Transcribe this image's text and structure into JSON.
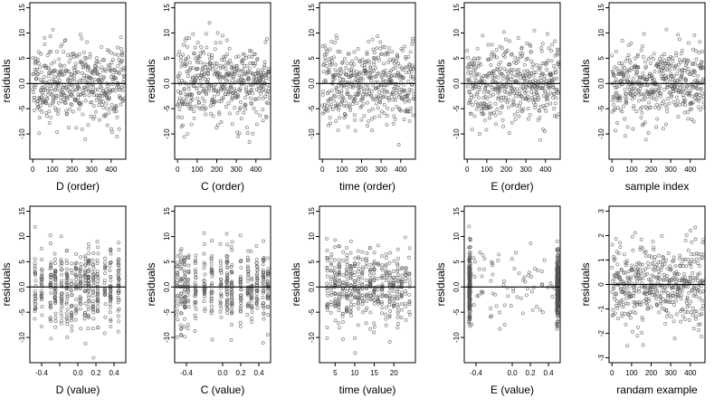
{
  "figure": {
    "ylabel": "residuals"
  },
  "colors": {
    "frame": "#000000",
    "point": "#555555",
    "background": "#ffffff"
  },
  "chart_data": [
    {
      "type": "scatter",
      "xlabel": "D (order)",
      "ylabel": "residuals",
      "xlim": [
        -15,
        475
      ],
      "ylim": [
        -15,
        16
      ],
      "x_ticks": [
        0,
        100,
        200,
        300,
        400
      ],
      "x_tick_labels": [
        "0",
        "100",
        "200",
        "300",
        "400"
      ],
      "y_ticks": [
        -10,
        -5,
        0,
        5,
        10,
        15
      ],
      "y_tick_labels": [
        "-10",
        "-5",
        "0.0",
        "5",
        "10",
        "15"
      ],
      "hline": 0,
      "points": [],
      "generator": {
        "kind": "index",
        "n": 470,
        "seed": 11,
        "sd": 4.6,
        "min": -14,
        "max": 15.5
      }
    },
    {
      "type": "scatter",
      "xlabel": "C (order)",
      "ylabel": "residuals",
      "xlim": [
        -15,
        475
      ],
      "ylim": [
        -15,
        16
      ],
      "x_ticks": [
        0,
        100,
        200,
        300,
        400
      ],
      "x_tick_labels": [
        "0",
        "100",
        "200",
        "300",
        "400"
      ],
      "y_ticks": [
        -10,
        -5,
        0,
        5,
        10,
        15
      ],
      "y_tick_labels": [
        "-10",
        "-5",
        "0.0",
        "5",
        "10",
        "15"
      ],
      "hline": 0,
      "points": [],
      "generator": {
        "kind": "index",
        "n": 470,
        "seed": 23,
        "sd": 4.6,
        "min": -14,
        "max": 15.5
      }
    },
    {
      "type": "scatter",
      "xlabel": "time (order)",
      "ylabel": "residuals",
      "xlim": [
        -15,
        475
      ],
      "ylim": [
        -15,
        16
      ],
      "x_ticks": [
        0,
        100,
        200,
        300,
        400
      ],
      "x_tick_labels": [
        "0",
        "100",
        "200",
        "300",
        "400"
      ],
      "y_ticks": [
        -10,
        -5,
        0,
        5,
        10,
        15
      ],
      "y_tick_labels": [
        "-10",
        "-5",
        "0.0",
        "5",
        "10",
        "15"
      ],
      "hline": 0,
      "points": [],
      "generator": {
        "kind": "index",
        "n": 470,
        "seed": 37,
        "sd": 4.6,
        "min": -14,
        "max": 15.5
      }
    },
    {
      "type": "scatter",
      "xlabel": "E (order)",
      "ylabel": "residuals",
      "xlim": [
        -15,
        475
      ],
      "ylim": [
        -15,
        16
      ],
      "x_ticks": [
        0,
        100,
        200,
        300,
        400
      ],
      "x_tick_labels": [
        "0",
        "100",
        "200",
        "300",
        "400"
      ],
      "y_ticks": [
        -10,
        -5,
        0,
        5,
        10,
        15
      ],
      "y_tick_labels": [
        "-10",
        "-5",
        "0.0",
        "5",
        "10",
        "15"
      ],
      "hline": 0,
      "points": [],
      "generator": {
        "kind": "index",
        "n": 470,
        "seed": 41,
        "sd": 4.6,
        "min": -14,
        "max": 15.5
      }
    },
    {
      "type": "scatter",
      "xlabel": "sample index",
      "ylabel": "residuals",
      "xlim": [
        -15,
        475
      ],
      "ylim": [
        -15,
        16
      ],
      "x_ticks": [
        0,
        100,
        200,
        300,
        400
      ],
      "x_tick_labels": [
        "0",
        "100",
        "200",
        "300",
        "400"
      ],
      "y_ticks": [
        -10,
        -5,
        0,
        5,
        10,
        15
      ],
      "y_tick_labels": [
        "-10",
        "-5",
        "0.0",
        "5",
        "10",
        "15"
      ],
      "hline": 0,
      "points": [],
      "generator": {
        "kind": "index",
        "n": 470,
        "seed": 53,
        "sd": 4.6,
        "min": -14,
        "max": 15.5
      }
    },
    {
      "type": "scatter",
      "xlabel": "D (value)",
      "ylabel": "residuals",
      "xlim": [
        -0.53,
        0.53
      ],
      "ylim": [
        -15,
        16
      ],
      "x_ticks": [
        -0.4,
        -0.2,
        0,
        0.2,
        0.4
      ],
      "x_tick_labels": [
        "-0.4",
        "0.0",
        "0.2",
        "0.4"
      ],
      "x_tick_label_values": [
        -0.4,
        0,
        0.2,
        0.4
      ],
      "y_ticks": [
        -10,
        -5,
        0,
        5,
        10,
        15
      ],
      "y_tick_labels": [
        "-10",
        "-5",
        "0.0",
        "5",
        "10",
        "15"
      ],
      "hline": 0,
      "points": [],
      "generator": {
        "kind": "grouped",
        "n": 470,
        "seed": 61,
        "sd": 4.6,
        "min": -14,
        "max": 15.5,
        "groups": [
          -0.47,
          -0.4,
          -0.3,
          -0.25,
          -0.18,
          -0.12,
          -0.07,
          -0.02,
          0.03,
          0.08,
          0.12,
          0.17,
          0.22,
          0.3,
          0.36,
          0.45
        ],
        "jitter": 0.006
      }
    },
    {
      "type": "scatter",
      "xlabel": "C (value)",
      "ylabel": "residuals",
      "xlim": [
        -0.53,
        0.53
      ],
      "ylim": [
        -15,
        16
      ],
      "x_ticks": [
        -0.4,
        0,
        0.2,
        0.4
      ],
      "x_tick_labels": [
        "-0.4",
        "0.0",
        "0.2",
        "0.4"
      ],
      "y_ticks": [
        -10,
        -5,
        0,
        5,
        10,
        15
      ],
      "y_tick_labels": [
        "-10",
        "-5",
        "0.0",
        "5",
        "10",
        "15"
      ],
      "hline": 0,
      "points": [],
      "generator": {
        "kind": "grouped",
        "n": 470,
        "seed": 71,
        "sd": 4.6,
        "min": -14,
        "max": 15.5,
        "groups": [
          -0.5,
          -0.46,
          -0.42,
          -0.38,
          -0.3,
          -0.2,
          -0.12,
          -0.02,
          0.05,
          0.1,
          0.2,
          0.28,
          0.32,
          0.38,
          0.45,
          0.5
        ],
        "jitter": 0.006
      }
    },
    {
      "type": "scatter",
      "xlabel": "time (value)",
      "ylabel": "residuals",
      "xlim": [
        1,
        25.5
      ],
      "ylim": [
        -15,
        16
      ],
      "x_ticks": [
        5,
        10,
        15,
        20
      ],
      "x_tick_labels": [
        "5",
        "10",
        "15",
        "20"
      ],
      "y_ticks": [
        -10,
        -5,
        0,
        5,
        10,
        15
      ],
      "y_tick_labels": [
        "-10",
        "-5",
        "0.0",
        "5",
        "10",
        "15"
      ],
      "hline": 0,
      "points": [],
      "generator": {
        "kind": "grouped",
        "n": 470,
        "seed": 83,
        "sd": 4.6,
        "min": -14,
        "max": 15.5,
        "groups": [
          3,
          4,
          5,
          6,
          7,
          8,
          9,
          10,
          11,
          12,
          13,
          14,
          15,
          16,
          17,
          18,
          19,
          20,
          21,
          22,
          23,
          24
        ],
        "jitter": 0.12
      }
    },
    {
      "type": "scatter",
      "xlabel": "E (value)",
      "ylabel": "residuals",
      "xlim": [
        -0.53,
        0.53
      ],
      "ylim": [
        -15,
        16
      ],
      "x_ticks": [
        -0.4,
        0,
        0.2,
        0.4
      ],
      "x_tick_labels": [
        "-0.4",
        "0.0",
        "0.2",
        "0.4"
      ],
      "y_ticks": [
        -10,
        -5,
        0,
        5,
        10,
        15
      ],
      "y_tick_labels": [
        "-10",
        "-5",
        "0.0",
        "5",
        "10",
        "15"
      ],
      "hline": 0,
      "points": [],
      "generator": {
        "kind": "edges",
        "n": 470,
        "seed": 97,
        "sd": 4.6,
        "min": -14,
        "max": 15.5,
        "left": -0.47,
        "right": 0.5,
        "edge_share": 0.85,
        "jitter": 0.008
      }
    },
    {
      "type": "scatter",
      "xlabel": "randam example",
      "ylabel": "residuals",
      "xlim": [
        -15,
        475
      ],
      "ylim": [
        -3.2,
        3.2
      ],
      "x_ticks": [
        0,
        100,
        200,
        300,
        400
      ],
      "x_tick_labels": [
        "0",
        "100",
        "200",
        "300",
        "400"
      ],
      "y_ticks": [
        -3,
        -2,
        -1,
        0,
        1,
        2,
        3
      ],
      "y_tick_labels": [
        "-3",
        "-2",
        "-1",
        "0",
        "1",
        "2",
        "3"
      ],
      "hline": 0,
      "points": [],
      "generator": {
        "kind": "index",
        "n": 470,
        "seed": 109,
        "sd": 1.0,
        "min": -3,
        "max": 3
      }
    }
  ]
}
